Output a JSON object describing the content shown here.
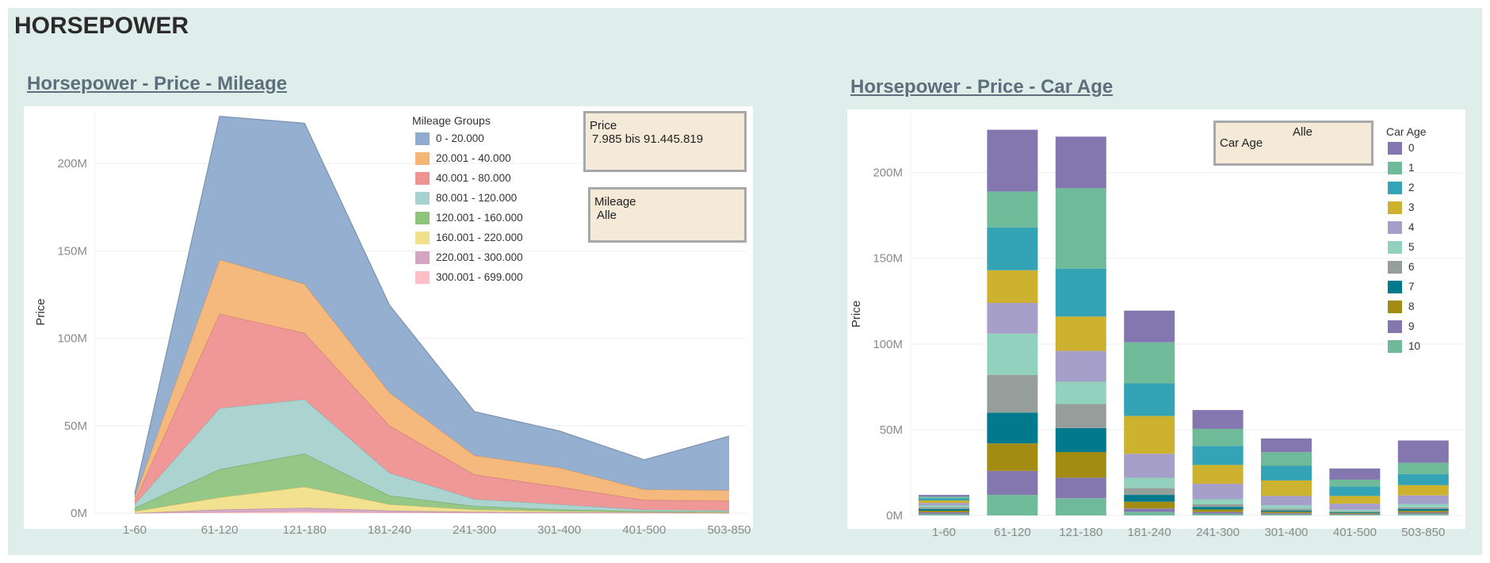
{
  "page": {
    "title": "HORSEPOWER"
  },
  "left_chart": {
    "title": "Horsepower - Price - Mileage",
    "legend_title": "Mileage Groups",
    "filters": {
      "price": {
        "label": "Price",
        "value": "7.985 bis 91.445.819"
      },
      "mileage": {
        "label": "Mileage",
        "value": "Alle"
      }
    }
  },
  "right_chart": {
    "title": "Horsepower - Price - Car Age",
    "legend_title": "Car Age",
    "filters": {
      "car_age": {
        "label": "Car Age",
        "value": "Alle"
      }
    }
  },
  "chart_data": [
    {
      "type": "area",
      "stacked": true,
      "title": "Horsepower - Price - Mileage",
      "xlabel": "",
      "ylabel": "Price",
      "categories": [
        "1-60",
        "61-120",
        "121-180",
        "181-240",
        "241-300",
        "301-400",
        "401-500",
        "503-850"
      ],
      "ylim": [
        0,
        230
      ],
      "y_ticks": [
        0,
        50,
        100,
        150,
        200
      ],
      "y_tick_labels": [
        "0M",
        "50M",
        "100M",
        "150M",
        "200M"
      ],
      "unit": "M",
      "legend_placement": "top",
      "grid": true,
      "series": [
        {
          "name": "300.001 - 699.000",
          "color": "#ffbfc7",
          "values": [
            0,
            0.5,
            1.0,
            0.4,
            0.2,
            0.1,
            0.1,
            0
          ]
        },
        {
          "name": "220.001 - 300.000",
          "color": "#d5a6c4",
          "values": [
            0,
            1.5,
            2.0,
            1.0,
            0.5,
            0.3,
            0.2,
            0.1
          ]
        },
        {
          "name": "160.001 - 220.000",
          "color": "#f1e08a",
          "values": [
            1.0,
            7.0,
            12.0,
            3.6,
            1.3,
            0.6,
            0.3,
            0.2
          ]
        },
        {
          "name": "120.001 - 160.000",
          "color": "#8fc47f",
          "values": [
            2.0,
            16.0,
            19.0,
            5.0,
            2.0,
            1.0,
            0.4,
            0.4
          ]
        },
        {
          "name": "80.001 - 120.000",
          "color": "#a6d2cf",
          "values": [
            2.0,
            35.0,
            31.0,
            13.0,
            4.0,
            3.0,
            0.9,
            0.8
          ]
        },
        {
          "name": "40.001 - 80.000",
          "color": "#ef9292",
          "values": [
            2.0,
            54.0,
            38.0,
            27.0,
            14.0,
            10.0,
            5.6,
            5.5
          ]
        },
        {
          "name": "20.001 - 40.000",
          "color": "#f5b576",
          "values": [
            2.0,
            31.0,
            28.0,
            19.0,
            11.0,
            11.0,
            6.0,
            6.0
          ]
        },
        {
          "name": "0 - 20.000",
          "color": "#8fabcd",
          "values": [
            2.0,
            82.0,
            92.0,
            50.0,
            25.0,
            21.0,
            17.0,
            31.0
          ]
        }
      ]
    },
    {
      "type": "bar",
      "stacked": true,
      "title": "Horsepower - Price - Car Age",
      "xlabel": "",
      "ylabel": "Price",
      "categories": [
        "1-60",
        "61-120",
        "121-180",
        "181-240",
        "241-300",
        "301-400",
        "401-500",
        "503-850"
      ],
      "ylim": [
        0,
        235
      ],
      "y_ticks": [
        0,
        50,
        100,
        150,
        200
      ],
      "y_tick_labels": [
        "0M",
        "50M",
        "100M",
        "150M",
        "200M"
      ],
      "unit": "M",
      "legend_placement": "right",
      "grid": true,
      "series": [
        {
          "name": "10",
          "color": "#6fba99",
          "values": [
            0.8,
            12.0,
            10.0,
            2.0,
            1.0,
            0.6,
            0.4,
            0.8
          ]
        },
        {
          "name": "9",
          "color": "#8477b0",
          "values": [
            1.0,
            14.0,
            12.0,
            2.0,
            1.0,
            0.7,
            0.4,
            0.9
          ]
        },
        {
          "name": "8",
          "color": "#a38c14",
          "values": [
            1.0,
            16.0,
            15.0,
            4.0,
            1.5,
            0.8,
            0.5,
            1.0
          ]
        },
        {
          "name": "7",
          "color": "#007a8c",
          "values": [
            1.0,
            18.0,
            14.0,
            4.0,
            1.5,
            0.8,
            0.5,
            1.0
          ]
        },
        {
          "name": "6",
          "color": "#969e9c",
          "values": [
            1.0,
            22.0,
            14.0,
            4.0,
            1.5,
            1.0,
            0.6,
            1.0
          ]
        },
        {
          "name": "5",
          "color": "#92d1bd",
          "values": [
            1.0,
            24.0,
            13.0,
            6.0,
            3.0,
            2.0,
            1.0,
            2.0
          ]
        },
        {
          "name": "4",
          "color": "#a59fc9",
          "values": [
            1.5,
            18.0,
            18.0,
            14.0,
            9.0,
            5.5,
            3.5,
            5.0
          ]
        },
        {
          "name": "3",
          "color": "#ccb22f",
          "values": [
            1.5,
            19.0,
            20.0,
            22.0,
            11.0,
            9.0,
            4.5,
            6.0
          ]
        },
        {
          "name": "2",
          "color": "#33a3b5",
          "values": [
            1.2,
            25.0,
            28.0,
            19.0,
            11.0,
            8.5,
            5.5,
            6.5
          ]
        },
        {
          "name": "1",
          "color": "#6fba99",
          "values": [
            1.0,
            21.0,
            47.0,
            24.0,
            10.0,
            8.0,
            4.0,
            6.5
          ]
        },
        {
          "name": "0",
          "color": "#8477b0",
          "values": [
            1.0,
            36.0,
            30.0,
            18.5,
            11.0,
            8.0,
            6.5,
            13.0
          ]
        }
      ]
    }
  ]
}
